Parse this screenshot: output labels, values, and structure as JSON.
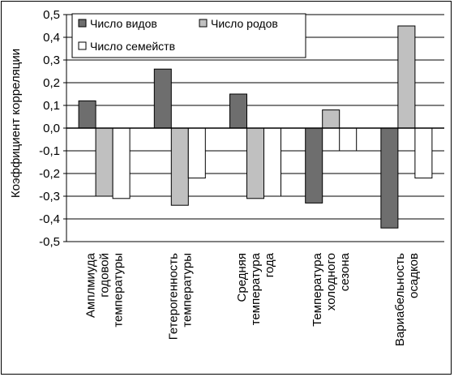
{
  "chart_data": {
    "type": "bar",
    "ylabel": "Коэффициент корреляции",
    "ylim": [
      -0.5,
      0.5
    ],
    "yticks": [
      0.5,
      0.4,
      0.3,
      0.2,
      0.1,
      0.0,
      -0.1,
      -0.2,
      -0.3,
      -0.4,
      -0.5
    ],
    "ytick_labels": [
      "0,5",
      "0,4",
      "0,3",
      "0,2",
      "0,1",
      "0,0",
      "-0,1",
      "-0,2",
      "-0,3",
      "-0,4",
      "-0,5"
    ],
    "grid": "horizontal",
    "legend_position": "top-left",
    "categories": [
      [
        "Амплмиуда",
        "годовой",
        "температуры"
      ],
      [
        "Гетерогенность",
        "температуры"
      ],
      [
        "Средняя",
        "температура",
        "года"
      ],
      [
        "Температура",
        "холодного",
        "сезона"
      ],
      [
        "Вариабельность",
        "осадков"
      ]
    ],
    "series": [
      {
        "name": "Число видов",
        "color": "#6e6e6e",
        "values": [
          0.12,
          0.26,
          0.15,
          -0.33,
          -0.44
        ]
      },
      {
        "name": "Число родов",
        "color": "#c0c0c0",
        "values": [
          -0.3,
          -0.34,
          -0.31,
          0.08,
          0.45
        ]
      },
      {
        "name": "Число семейств",
        "color": "#ffffff",
        "values": [
          -0.31,
          -0.22,
          -0.3,
          -0.1,
          -0.22
        ]
      }
    ]
  }
}
